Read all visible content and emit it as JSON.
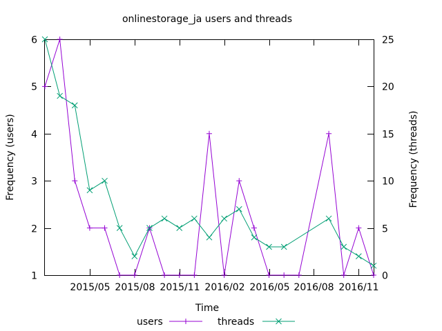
{
  "chart_data": {
    "type": "line",
    "title": "onlinestorage_ja users and threads",
    "xlabel": "Time",
    "ylabel_left": "Frequency (users)",
    "ylabel_right": "Frequency (threads)",
    "x_tick_labels": [
      "2015/05",
      "2015/08",
      "2015/11",
      "2016/02",
      "2016/05",
      "2016/08",
      "2016/11"
    ],
    "y_left_ticks": [
      "1",
      "2",
      "3",
      "4",
      "5",
      "6"
    ],
    "y_right_ticks": [
      "0",
      "5",
      "10",
      "15",
      "20",
      "25"
    ],
    "ylim_left": [
      1,
      6
    ],
    "ylim_right": [
      0,
      25
    ],
    "grid": false,
    "legend_placement": "bottom",
    "x_months": [
      "2015-02",
      "2015-03",
      "2015-04",
      "2015-05",
      "2015-06",
      "2015-07",
      "2015-08",
      "2015-09",
      "2015-10",
      "2015-11",
      "2015-12",
      "2016-01",
      "2016-02",
      "2016-03",
      "2016-04",
      "2016-05",
      "2016-06",
      "2016-07",
      "2016-08",
      "2016-09",
      "2016-10",
      "2016-11",
      "2016-12"
    ],
    "series": [
      {
        "name": "users",
        "axis": "left",
        "marker": "+",
        "color": "#9400d3",
        "months": [
          "2015-02",
          "2015-03",
          "2015-04",
          "2015-05",
          "2015-06",
          "2015-07",
          "2015-08",
          "2015-09",
          "2015-10",
          "2015-11",
          "2015-12",
          "2016-01",
          "2016-02",
          "2016-03",
          "2016-04",
          "2016-05",
          "2016-06",
          "2016-07",
          "2016-09",
          "2016-10",
          "2016-11",
          "2016-12"
        ],
        "values": [
          5,
          6,
          3,
          2,
          2,
          1,
          1,
          2,
          1,
          1,
          1,
          4,
          1,
          3,
          2,
          1,
          1,
          1,
          4,
          1,
          2,
          1
        ]
      },
      {
        "name": "threads",
        "axis": "right",
        "marker": "x",
        "color": "#009e73",
        "months": [
          "2015-02",
          "2015-03",
          "2015-04",
          "2015-05",
          "2015-06",
          "2015-07",
          "2015-08",
          "2015-09",
          "2015-10",
          "2015-11",
          "2015-12",
          "2016-01",
          "2016-02",
          "2016-03",
          "2016-04",
          "2016-05",
          "2016-06",
          "2016-09",
          "2016-10",
          "2016-11",
          "2016-12"
        ],
        "values": [
          25,
          19,
          18,
          9,
          10,
          5,
          2,
          5,
          6,
          5,
          6,
          4,
          6,
          7,
          4,
          3,
          3,
          6,
          3,
          2,
          1
        ]
      }
    ]
  }
}
